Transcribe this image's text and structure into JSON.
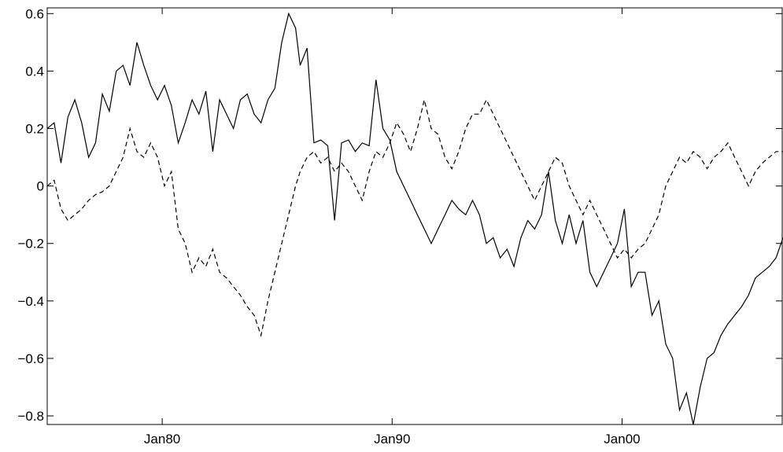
{
  "chart_data": {
    "type": "line",
    "title": "",
    "xlabel": "",
    "ylabel": "",
    "xlim": [
      1975.0,
      2007.0
    ],
    "ylim": [
      -0.83,
      0.62
    ],
    "grid": false,
    "x_ticks": [
      {
        "value": 1980,
        "label": "Jan80"
      },
      {
        "value": 1990,
        "label": "Jan90"
      },
      {
        "value": 2000,
        "label": "Jan00"
      }
    ],
    "y_ticks": [
      {
        "value": 0.6,
        "label": "0.6"
      },
      {
        "value": 0.4,
        "label": "0.4"
      },
      {
        "value": 0.2,
        "label": "0.2"
      },
      {
        "value": 0,
        "label": "0"
      },
      {
        "value": -0.2,
        "label": "−0.2"
      },
      {
        "value": -0.4,
        "label": "−0.4"
      },
      {
        "value": -0.6,
        "label": "−0.6"
      },
      {
        "value": -0.8,
        "label": "−0.8"
      }
    ],
    "series": [
      {
        "style": "solid",
        "color": "#000000",
        "x": [
          1975.0,
          1975.3,
          1975.6,
          1975.9,
          1976.2,
          1976.5,
          1976.8,
          1977.1,
          1977.4,
          1977.7,
          1978.0,
          1978.3,
          1978.6,
          1978.9,
          1979.2,
          1979.5,
          1979.8,
          1980.1,
          1980.4,
          1980.7,
          1981.0,
          1981.3,
          1981.6,
          1981.9,
          1982.2,
          1982.5,
          1982.8,
          1983.1,
          1983.4,
          1983.7,
          1984.0,
          1984.3,
          1984.6,
          1984.9,
          1985.2,
          1985.5,
          1985.8,
          1986.0,
          1986.3,
          1986.6,
          1986.9,
          1987.2,
          1987.5,
          1987.8,
          1988.1,
          1988.4,
          1988.7,
          1989.0,
          1989.3,
          1989.6,
          1989.9,
          1990.2,
          1990.5,
          1990.8,
          1991.1,
          1991.4,
          1991.7,
          1992.0,
          1992.3,
          1992.6,
          1992.9,
          1993.2,
          1993.5,
          1993.8,
          1994.1,
          1994.4,
          1994.7,
          1995.0,
          1995.3,
          1995.6,
          1995.9,
          1996.2,
          1996.5,
          1996.8,
          1997.1,
          1997.4,
          1997.7,
          1998.0,
          1998.3,
          1998.6,
          1998.9,
          1999.2,
          1999.5,
          1999.8,
          2000.1,
          2000.4,
          2000.7,
          2001.0,
          2001.3,
          2001.6,
          2001.9,
          2002.2,
          2002.5,
          2002.8,
          2003.1,
          2003.4,
          2003.7,
          2004.0,
          2004.3,
          2004.6,
          2004.9,
          2005.2,
          2005.5,
          2005.8,
          2006.1,
          2006.4,
          2006.7,
          2007.0
        ],
        "values": [
          0.2,
          0.22,
          0.08,
          0.24,
          0.3,
          0.22,
          0.1,
          0.15,
          0.32,
          0.26,
          0.4,
          0.42,
          0.35,
          0.5,
          0.42,
          0.35,
          0.3,
          0.35,
          0.28,
          0.15,
          0.22,
          0.3,
          0.25,
          0.33,
          0.12,
          0.3,
          0.25,
          0.2,
          0.3,
          0.32,
          0.25,
          0.22,
          0.3,
          0.34,
          0.5,
          0.6,
          0.55,
          0.42,
          0.48,
          0.15,
          0.16,
          0.14,
          -0.12,
          0.15,
          0.16,
          0.12,
          0.15,
          0.14,
          0.37,
          0.2,
          0.16,
          0.05,
          0.0,
          -0.05,
          -0.1,
          -0.15,
          -0.2,
          -0.15,
          -0.1,
          -0.05,
          -0.08,
          -0.1,
          -0.05,
          -0.1,
          -0.2,
          -0.18,
          -0.25,
          -0.22,
          -0.28,
          -0.18,
          -0.12,
          -0.15,
          -0.1,
          0.05,
          -0.12,
          -0.2,
          -0.1,
          -0.2,
          -0.12,
          -0.3,
          -0.35,
          -0.3,
          -0.25,
          -0.2,
          -0.08,
          -0.35,
          -0.3,
          -0.3,
          -0.45,
          -0.4,
          -0.55,
          -0.6,
          -0.78,
          -0.72,
          -0.83,
          -0.7,
          -0.6,
          -0.58,
          -0.52,
          -0.48,
          -0.45,
          -0.42,
          -0.38,
          -0.32,
          -0.3,
          -0.28,
          -0.25,
          -0.18
        ]
      },
      {
        "style": "dashed",
        "color": "#000000",
        "x": [
          1975.0,
          1975.3,
          1975.6,
          1975.9,
          1976.2,
          1976.5,
          1976.8,
          1977.1,
          1977.4,
          1977.7,
          1978.0,
          1978.3,
          1978.6,
          1978.9,
          1979.2,
          1979.5,
          1979.8,
          1980.1,
          1980.4,
          1980.7,
          1981.0,
          1981.3,
          1981.6,
          1981.9,
          1982.2,
          1982.5,
          1982.8,
          1983.1,
          1983.4,
          1983.7,
          1984.0,
          1984.3,
          1984.6,
          1984.9,
          1985.2,
          1985.5,
          1985.8,
          1986.0,
          1986.3,
          1986.6,
          1986.9,
          1987.2,
          1987.5,
          1987.8,
          1988.1,
          1988.4,
          1988.7,
          1989.0,
          1989.3,
          1989.6,
          1989.9,
          1990.2,
          1990.5,
          1990.8,
          1991.1,
          1991.4,
          1991.7,
          1992.0,
          1992.3,
          1992.6,
          1992.9,
          1993.2,
          1993.5,
          1993.8,
          1994.1,
          1994.4,
          1994.7,
          1995.0,
          1995.3,
          1995.6,
          1995.9,
          1996.2,
          1996.5,
          1996.8,
          1997.1,
          1997.4,
          1997.7,
          1998.0,
          1998.3,
          1998.6,
          1998.9,
          1999.2,
          1999.5,
          1999.8,
          2000.1,
          2000.4,
          2000.7,
          2001.0,
          2001.3,
          2001.6,
          2001.9,
          2002.2,
          2002.5,
          2002.8,
          2003.1,
          2003.4,
          2003.7,
          2004.0,
          2004.3,
          2004.6,
          2004.9,
          2005.2,
          2005.5,
          2005.8,
          2006.1,
          2006.4,
          2006.7,
          2007.0
        ],
        "values": [
          0.0,
          0.02,
          -0.08,
          -0.12,
          -0.1,
          -0.08,
          -0.05,
          -0.03,
          -0.02,
          0.0,
          0.05,
          0.1,
          0.2,
          0.12,
          0.1,
          0.15,
          0.1,
          0.0,
          0.05,
          -0.15,
          -0.2,
          -0.3,
          -0.25,
          -0.28,
          -0.22,
          -0.3,
          -0.32,
          -0.35,
          -0.38,
          -0.42,
          -0.45,
          -0.52,
          -0.4,
          -0.3,
          -0.2,
          -0.1,
          0.0,
          0.05,
          0.1,
          0.12,
          0.08,
          0.1,
          0.05,
          0.08,
          0.05,
          0.0,
          -0.05,
          0.05,
          0.12,
          0.1,
          0.15,
          0.22,
          0.18,
          0.12,
          0.2,
          0.3,
          0.2,
          0.18,
          0.1,
          0.06,
          0.12,
          0.2,
          0.25,
          0.25,
          0.3,
          0.25,
          0.2,
          0.15,
          0.1,
          0.05,
          0.0,
          -0.05,
          0.0,
          0.05,
          0.1,
          0.08,
          0.0,
          -0.05,
          -0.1,
          -0.05,
          -0.1,
          -0.15,
          -0.2,
          -0.25,
          -0.22,
          -0.25,
          -0.22,
          -0.2,
          -0.15,
          -0.1,
          0.0,
          0.05,
          0.1,
          0.08,
          0.12,
          0.1,
          0.06,
          0.1,
          0.12,
          0.15,
          0.1,
          0.05,
          0.0,
          0.05,
          0.08,
          0.1,
          0.12,
          0.12
        ]
      }
    ]
  }
}
